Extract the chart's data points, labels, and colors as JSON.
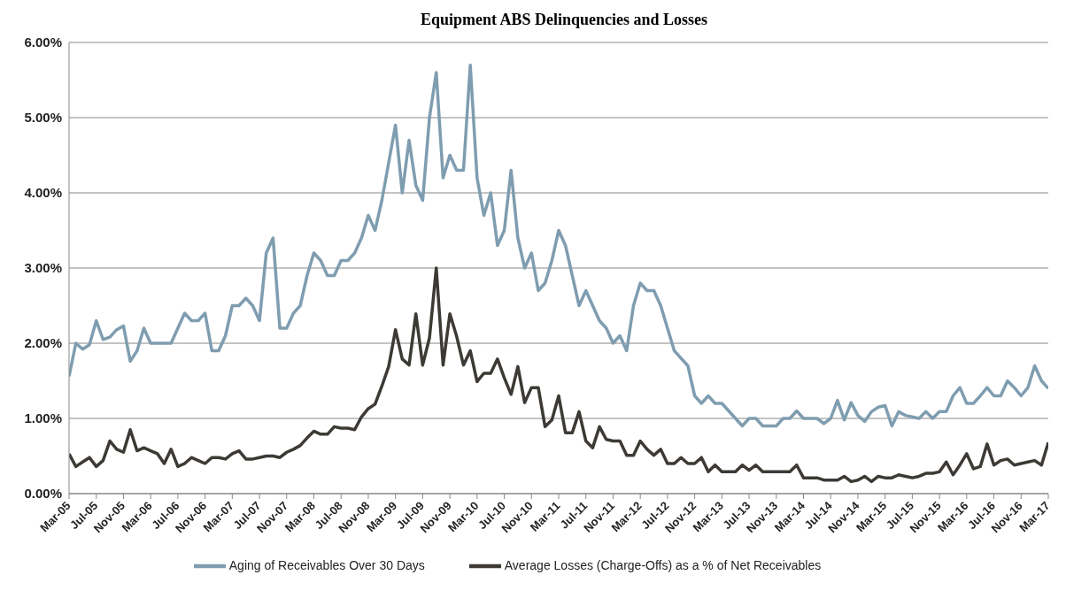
{
  "chart_data": {
    "type": "line",
    "title": "Equipment ABS Delinquencies and Losses",
    "categories": [
      "Mar-05",
      null,
      null,
      null,
      "Jul-05",
      null,
      null,
      null,
      "Nov-05",
      null,
      null,
      null,
      "Mar-06",
      null,
      null,
      null,
      "Jul-06",
      null,
      null,
      null,
      "Nov-06",
      null,
      null,
      null,
      "Mar-07",
      null,
      null,
      null,
      "Jul-07",
      null,
      null,
      null,
      "Nov-07",
      null,
      null,
      null,
      "Mar-08",
      null,
      null,
      null,
      "Jul-08",
      null,
      null,
      null,
      "Nov-08",
      null,
      null,
      null,
      "Mar-09",
      null,
      null,
      null,
      "Jul-09",
      null,
      null,
      null,
      "Nov-09",
      null,
      null,
      null,
      "Mar-10",
      null,
      null,
      null,
      "Jul-10",
      null,
      null,
      null,
      "Nov-10",
      null,
      null,
      null,
      "Mar-11",
      null,
      null,
      null,
      "Jul-11",
      null,
      null,
      null,
      "Nov-11",
      null,
      null,
      null,
      "Mar-12",
      null,
      null,
      null,
      "Jul-12",
      null,
      null,
      null,
      "Nov-12",
      null,
      null,
      null,
      "Mar-13",
      null,
      null,
      null,
      "Jul-13",
      null,
      null,
      null,
      "Nov-13",
      null,
      null,
      null,
      "Mar-14",
      null,
      null,
      null,
      "Jul-14",
      null,
      null,
      null,
      "Nov-14",
      null,
      null,
      null,
      "Mar-15",
      null,
      null,
      null,
      "Jul-15",
      null,
      null,
      null,
      "Nov-15",
      null,
      null,
      null,
      "Mar-16",
      null,
      null,
      null,
      "Jul-16",
      null,
      null,
      null,
      "Nov-16",
      null,
      null,
      null,
      "Mar-17"
    ],
    "series": [
      {
        "name": "Aging of Receivables Over 30 Days",
        "color": "#7f9db0",
        "values": [
          1.56,
          2.0,
          1.92,
          1.98,
          2.3,
          2.05,
          2.08,
          2.18,
          2.23,
          1.76,
          1.9,
          2.2,
          2.0,
          2.0,
          2.0,
          2.0,
          2.2,
          2.4,
          2.3,
          2.3,
          2.4,
          1.9,
          1.9,
          2.1,
          2.5,
          2.5,
          2.6,
          2.5,
          2.3,
          3.2,
          3.4,
          2.2,
          2.2,
          2.4,
          2.5,
          2.9,
          3.2,
          3.1,
          2.9,
          2.9,
          3.1,
          3.1,
          3.2,
          3.4,
          3.7,
          3.5,
          3.9,
          4.4,
          4.9,
          4.0,
          4.7,
          4.1,
          3.9,
          5.0,
          5.6,
          4.2,
          4.5,
          4.3,
          4.3,
          5.7,
          4.2,
          3.7,
          4.0,
          3.3,
          3.5,
          4.3,
          3.4,
          3.0,
          3.2,
          2.7,
          2.8,
          3.1,
          3.5,
          3.3,
          2.9,
          2.5,
          2.7,
          2.5,
          2.3,
          2.2,
          2.0,
          2.1,
          1.9,
          2.5,
          2.8,
          2.7,
          2.7,
          2.5,
          2.2,
          1.9,
          1.8,
          1.7,
          1.3,
          1.2,
          1.3,
          1.2,
          1.2,
          1.1,
          1.0,
          0.9,
          1.0,
          1.0,
          0.9,
          0.9,
          0.9,
          1.0,
          1.0,
          1.1,
          1.0,
          1.0,
          1.0,
          0.93,
          1.0,
          1.24,
          0.98,
          1.21,
          1.04,
          0.96,
          1.09,
          1.15,
          1.17,
          0.9,
          1.09,
          1.04,
          1.02,
          1.0,
          1.09,
          1.0,
          1.09,
          1.09,
          1.3,
          1.41,
          1.2,
          1.2,
          1.3,
          1.41,
          1.3,
          1.3,
          1.5,
          1.41,
          1.3,
          1.41,
          1.7,
          1.5,
          1.4
        ]
      },
      {
        "name": "Average Losses (Charge-Offs) as a % of Net Receivables",
        "color": "#3d3a35",
        "values": [
          0.53,
          0.36,
          0.42,
          0.48,
          0.36,
          0.44,
          0.7,
          0.59,
          0.55,
          0.85,
          0.57,
          0.61,
          0.57,
          0.53,
          0.4,
          0.59,
          0.36,
          0.4,
          0.48,
          0.44,
          0.4,
          0.48,
          0.48,
          0.46,
          0.53,
          0.57,
          0.46,
          0.46,
          0.48,
          0.5,
          0.5,
          0.48,
          0.55,
          0.59,
          0.64,
          0.74,
          0.83,
          0.79,
          0.79,
          0.89,
          0.87,
          0.87,
          0.85,
          1.02,
          1.13,
          1.19,
          1.43,
          1.69,
          2.18,
          1.79,
          1.71,
          2.39,
          1.71,
          2.07,
          3.0,
          1.71,
          2.39,
          2.09,
          1.71,
          1.9,
          1.49,
          1.6,
          1.6,
          1.79,
          1.54,
          1.32,
          1.69,
          1.21,
          1.41,
          1.41,
          0.89,
          0.98,
          1.3,
          0.81,
          0.81,
          1.09,
          0.7,
          0.61,
          0.89,
          0.72,
          0.7,
          0.7,
          0.51,
          0.51,
          0.7,
          0.59,
          0.51,
          0.59,
          0.4,
          0.4,
          0.48,
          0.4,
          0.4,
          0.48,
          0.29,
          0.38,
          0.29,
          0.29,
          0.29,
          0.38,
          0.31,
          0.38,
          0.29,
          0.29,
          0.29,
          0.29,
          0.29,
          0.38,
          0.21,
          0.21,
          0.21,
          0.18,
          0.18,
          0.18,
          0.23,
          0.16,
          0.18,
          0.23,
          0.16,
          0.23,
          0.21,
          0.21,
          0.25,
          0.23,
          0.21,
          0.23,
          0.27,
          0.27,
          0.29,
          0.42,
          0.25,
          0.38,
          0.53,
          0.33,
          0.36,
          0.66,
          0.38,
          0.44,
          0.46,
          0.38,
          0.4,
          0.42,
          0.44,
          0.38,
          0.68
        ]
      }
    ],
    "ylim": [
      0,
      6
    ],
    "yticks": [
      {
        "value": 0,
        "label": "0.00%"
      },
      {
        "value": 1,
        "label": "1.00%"
      },
      {
        "value": 2,
        "label": "2.00%"
      },
      {
        "value": 3,
        "label": "3.00%"
      },
      {
        "value": 4,
        "label": "4.00%"
      },
      {
        "value": 5,
        "label": "5.00%"
      },
      {
        "value": 6,
        "label": "6.00%"
      }
    ],
    "grid": "y",
    "legend": "bottom",
    "marker": "none",
    "line_style": "solid"
  }
}
